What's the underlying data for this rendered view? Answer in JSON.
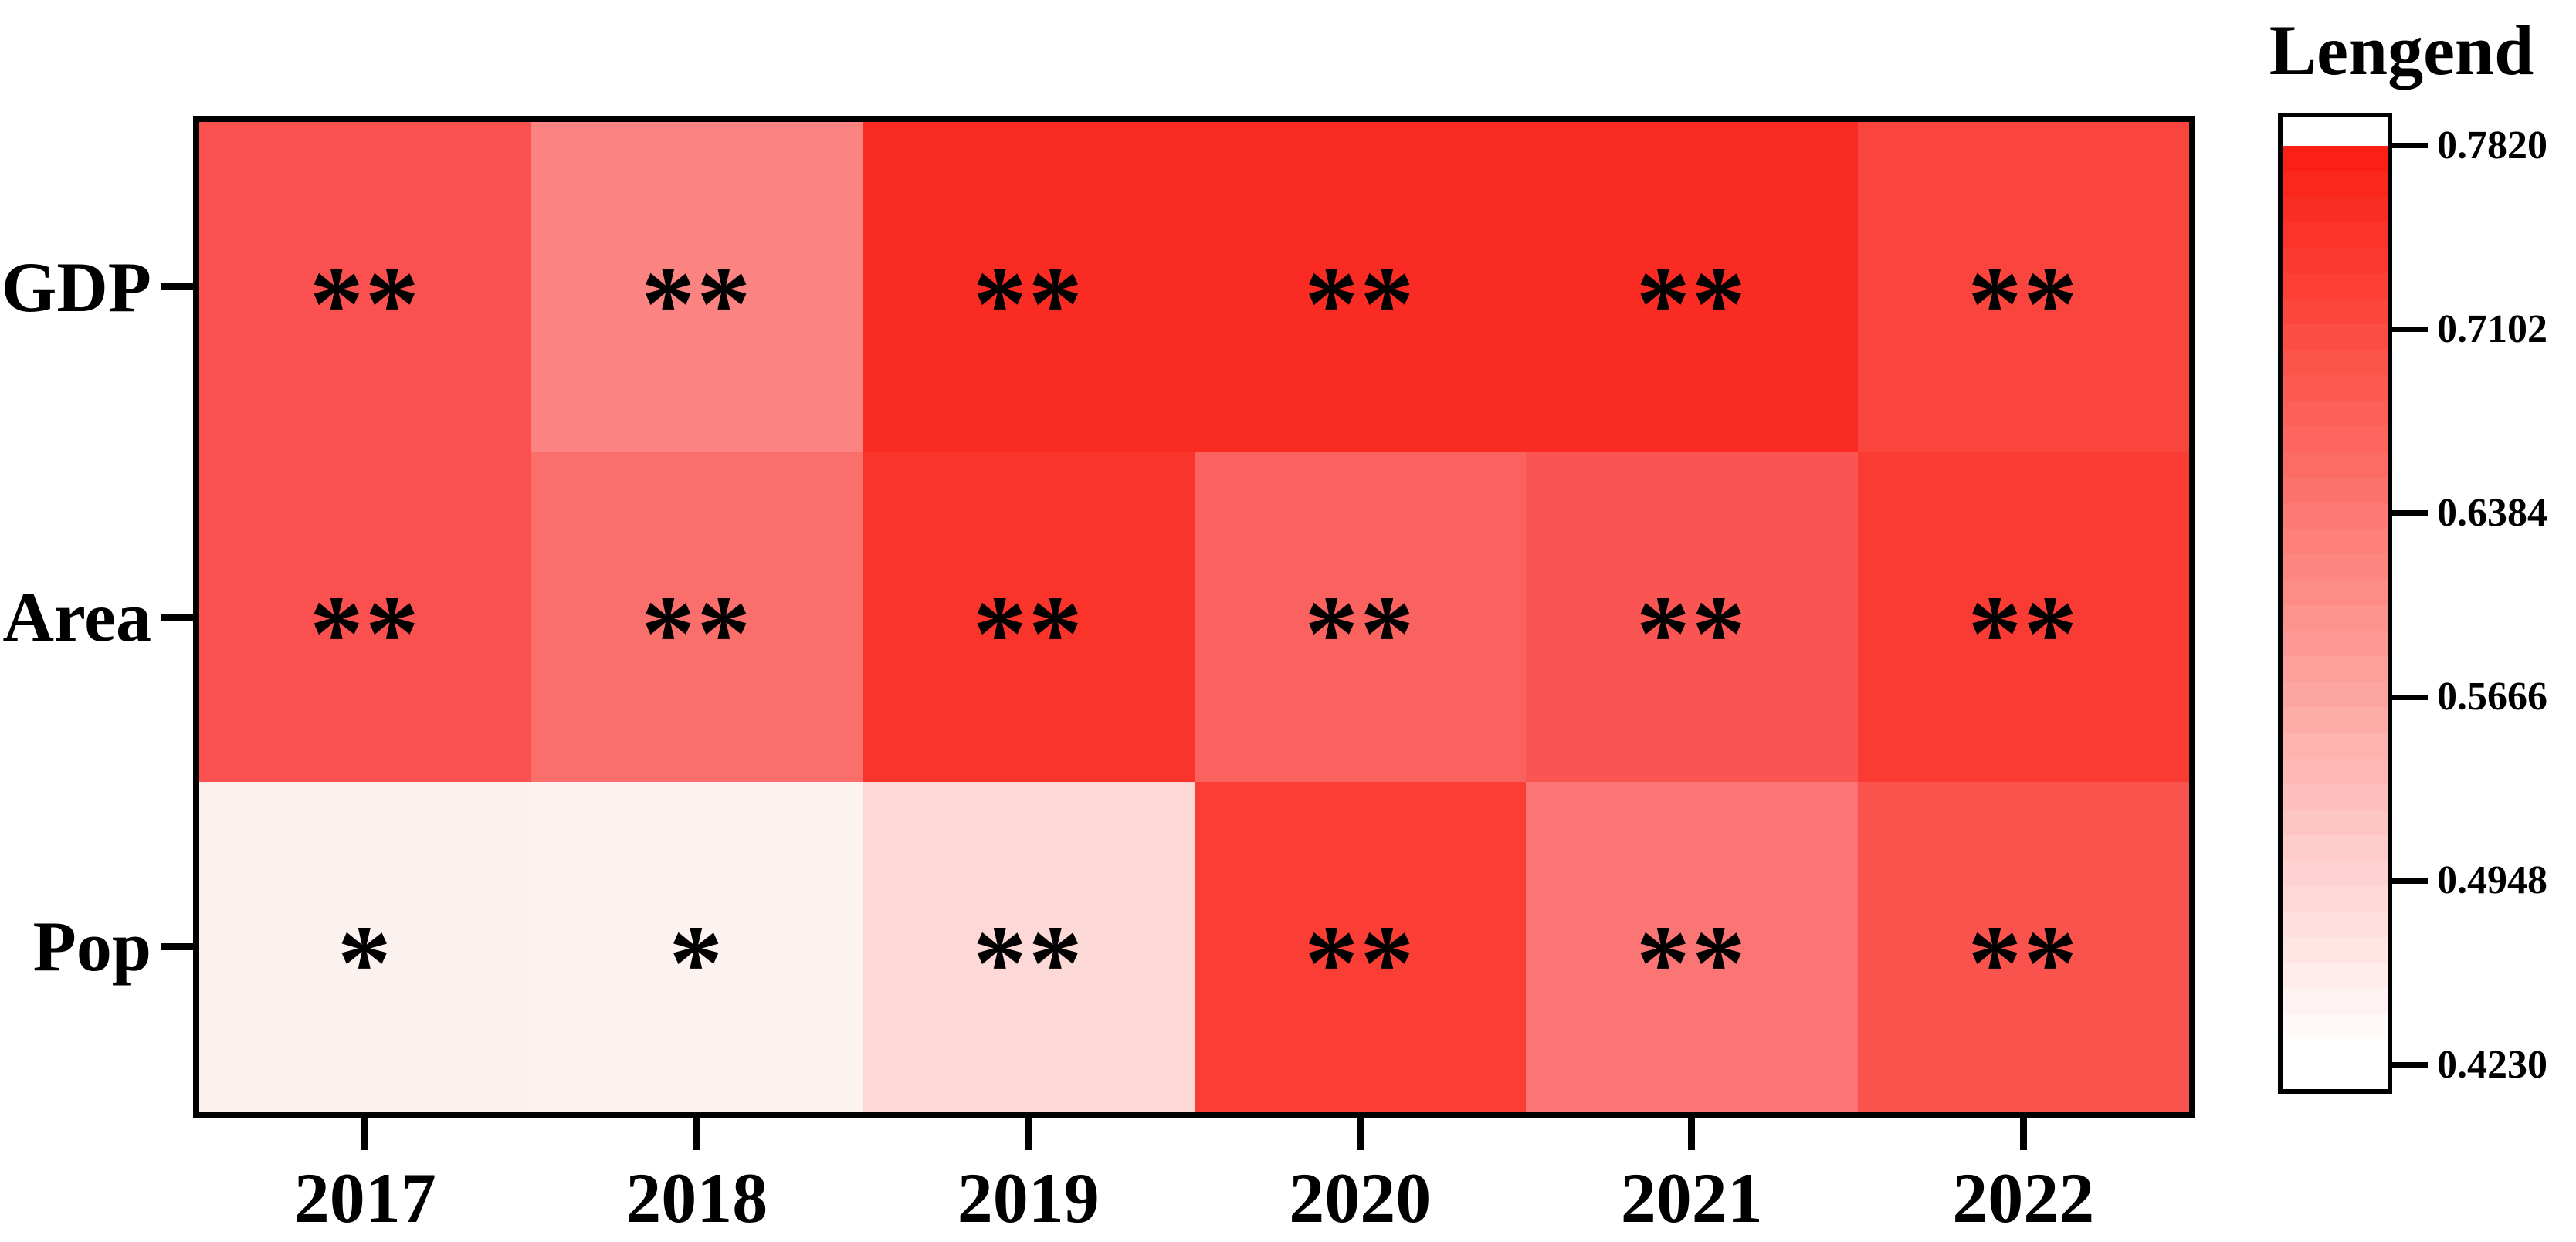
{
  "chart_data": {
    "type": "heatmap",
    "title": "",
    "legend_title": "Lengend",
    "legend_position": "right",
    "grid": false,
    "x_categories": [
      "2017",
      "2018",
      "2019",
      "2020",
      "2021",
      "2022"
    ],
    "y_categories": [
      "GDP",
      "Area",
      "Pop"
    ],
    "rows": [
      {
        "name": "GDP",
        "markers": [
          "**",
          "**",
          "**",
          "**",
          "**",
          "**"
        ],
        "cell_colors": [
          "#fa5150",
          "#fb8483",
          "#fa2b22",
          "#fa2b22",
          "#fa2b22",
          "#fa443e"
        ],
        "values_estimated_from_colorscale": [
          0.7,
          0.62,
          0.78,
          0.78,
          0.78,
          0.72
        ]
      },
      {
        "name": "Area",
        "markers": [
          "**",
          "**",
          "**",
          "**",
          "**",
          "**"
        ],
        "cell_colors": [
          "#fa5150",
          "#fa6e6c",
          "#fa332b",
          "#fa625f",
          "#fa5553",
          "#fa3b33"
        ],
        "values_estimated_from_colorscale": [
          0.7,
          0.66,
          0.75,
          0.68,
          0.7,
          0.74
        ]
      },
      {
        "name": "Pop",
        "markers": [
          "*",
          "*",
          "**",
          "**",
          "**",
          "**"
        ],
        "cell_colors": [
          "#fbf1ef",
          "#fcf2f0",
          "#fcd8d7",
          "#fa3e36",
          "#fa7573",
          "#fa534e"
        ],
        "values_estimated_from_colorscale": [
          0.43,
          0.42,
          0.49,
          0.73,
          0.65,
          0.7
        ]
      }
    ],
    "colorbar": {
      "tick_labels": [
        "0.7820",
        "0.7102",
        "0.6384",
        "0.5666",
        "0.4948",
        "0.4230"
      ],
      "tick_values": [
        0.782,
        0.7102,
        0.6384,
        0.5666,
        0.4948,
        0.423
      ],
      "value_range": [
        0.423,
        0.782
      ],
      "top_color": "#fb2015",
      "bottom_color": "#ffffff",
      "border_color": "#000000"
    }
  }
}
